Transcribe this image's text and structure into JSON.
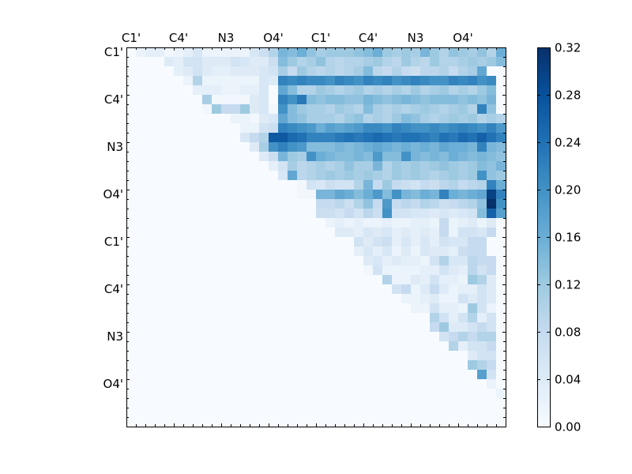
{
  "chart_data": {
    "type": "heatmap",
    "title": "",
    "xlabel": "",
    "ylabel": "",
    "n": 40,
    "x_tick_labels": [
      "C1'",
      "C4'",
      "N3",
      "O4'",
      "C1'",
      "C4'",
      "N3",
      "O4'"
    ],
    "y_tick_labels": [
      "C1'",
      "C4'",
      "N3",
      "O4'",
      "C1'",
      "C4'",
      "N3",
      "O4'"
    ],
    "label_positions": [
      0,
      5,
      10,
      15,
      20,
      25,
      30,
      35
    ],
    "colormap": "Blues",
    "vmin": 0.0,
    "vmax": 0.32,
    "colorbar_ticks": [
      "0.00",
      "0.04",
      "0.08",
      "0.12",
      "0.16",
      "0.20",
      "0.24",
      "0.28",
      "0.32"
    ],
    "colors": {
      "low": "#f7fbff",
      "high": "#08306b"
    },
    "rows": [
      {
        "row": 0,
        "start": 1,
        "values": [
          0.02,
          0.03,
          0.03,
          0.01,
          0.02,
          0.03,
          0.05,
          0.02,
          0.02,
          0.02,
          0.02,
          0.02,
          0.05,
          0.07,
          0.1,
          0.15,
          0.14,
          0.16,
          0.13,
          0.11,
          0.12,
          0.12,
          0.12,
          0.13,
          0.14,
          0.16,
          0.12,
          0.11,
          0.12,
          0.11,
          0.15,
          0.12,
          0.1,
          0.13,
          0.12,
          0.11,
          0.13,
          0.1,
          0.16
        ]
      },
      {
        "row": 1,
        "start": 4,
        "values": [
          0.04,
          0.03,
          0.06,
          0.06,
          0.04,
          0.04,
          0.04,
          0.06,
          0.05,
          0.04,
          0.04,
          0.07,
          0.14,
          0.12,
          0.1,
          0.11,
          0.13,
          0.1,
          0.09,
          0.1,
          0.1,
          0.11,
          0.12,
          0.1,
          0.09,
          0.12,
          0.1,
          0.09,
          0.12,
          0.1,
          0.1,
          0.11,
          0.12,
          0.11,
          0.12,
          0.14
        ]
      },
      {
        "row": 2,
        "start": 5,
        "values": [
          0.03,
          0.04,
          0.06,
          0.04,
          0.03,
          0.03,
          0.04,
          0.04,
          0.04,
          0.05,
          0.06,
          0.11,
          0.08,
          0.12,
          0.1,
          0.09,
          0.1,
          0.09,
          0.1,
          0.11,
          0.14,
          0.09,
          0.08,
          0.1,
          0.08,
          0.07,
          0.09,
          0.09,
          0.1,
          0.08,
          0.1,
          0.11,
          0.17
        ]
      },
      {
        "row": 3,
        "start": 6,
        "values": [
          0.02,
          0.1,
          0.02,
          0.02,
          0.02,
          0.02,
          0.02,
          0.02,
          0.05,
          0.04,
          0.22,
          0.21,
          0.22,
          0.21,
          0.21,
          0.2,
          0.22,
          0.21,
          0.2,
          0.22,
          0.21,
          0.22,
          0.2,
          0.21,
          0.22,
          0.21,
          0.2,
          0.2,
          0.22,
          0.21,
          0.22,
          0.2,
          0.21
        ]
      },
      {
        "row": 4,
        "start": 7,
        "values": [
          0.03,
          0.03,
          0.03,
          0.02,
          0.02,
          0.03,
          0.03,
          0.05,
          0.0,
          0.17,
          0.14,
          0.1,
          0.1,
          0.12,
          0.11,
          0.1,
          0.11,
          0.12,
          0.1,
          0.11,
          0.1,
          0.11,
          0.1,
          0.12,
          0.1,
          0.11,
          0.12,
          0.1,
          0.11,
          0.1,
          0.12,
          0.14
        ]
      },
      {
        "row": 5,
        "start": 8,
        "values": [
          0.11,
          0.01,
          0.01,
          0.01,
          0.01,
          0.04,
          0.05,
          0.0,
          0.22,
          0.2,
          0.23,
          0.14,
          0.13,
          0.14,
          0.14,
          0.13,
          0.13,
          0.15,
          0.14,
          0.13,
          0.14,
          0.15,
          0.14,
          0.13,
          0.14,
          0.14,
          0.14,
          0.13,
          0.14,
          0.13,
          0.15
        ]
      },
      {
        "row": 6,
        "start": 8,
        "values": [
          0.01,
          0.12,
          0.08,
          0.08,
          0.12,
          0.04,
          0.05,
          0.01,
          0.2,
          0.14,
          0.12,
          0.11,
          0.11,
          0.1,
          0.12,
          0.11,
          0.1,
          0.14,
          0.11,
          0.1,
          0.11,
          0.1,
          0.11,
          0.12,
          0.11,
          0.1,
          0.11,
          0.12,
          0.1,
          0.22,
          0.13
        ]
      },
      {
        "row": 7,
        "start": 11,
        "values": [
          0.02,
          0.02,
          0.01,
          0.04,
          0.05,
          0.17,
          0.14,
          0.13,
          0.11,
          0.11,
          0.11,
          0.1,
          0.12,
          0.13,
          0.1,
          0.11,
          0.1,
          0.12,
          0.14,
          0.13,
          0.11,
          0.1,
          0.11,
          0.12,
          0.11,
          0.12,
          0.1,
          0.11,
          0.1
        ]
      },
      {
        "row": 8,
        "start": 12,
        "values": [
          0.02,
          0.02,
          0.06,
          0.07,
          0.22,
          0.21,
          0.2,
          0.19,
          0.16,
          0.18,
          0.17,
          0.18,
          0.19,
          0.21,
          0.21,
          0.2,
          0.22,
          0.21,
          0.2,
          0.2,
          0.21,
          0.2,
          0.21,
          0.22,
          0.21,
          0.2,
          0.22,
          0.19
        ]
      },
      {
        "row": 9,
        "start": 12,
        "values": [
          0.05,
          0.08,
          0.1,
          0.27,
          0.27,
          0.25,
          0.24,
          0.22,
          0.22,
          0.22,
          0.23,
          0.24,
          0.23,
          0.24,
          0.25,
          0.24,
          0.23,
          0.24,
          0.24,
          0.23,
          0.22,
          0.24,
          0.23,
          0.25,
          0.24,
          0.26,
          0.24,
          0.22
        ]
      },
      {
        "row": 10,
        "start": 13,
        "values": [
          0.04,
          0.11,
          0.2,
          0.22,
          0.2,
          0.19,
          0.14,
          0.14,
          0.14,
          0.15,
          0.14,
          0.15,
          0.16,
          0.17,
          0.16,
          0.15,
          0.16,
          0.15,
          0.16,
          0.15,
          0.17,
          0.16,
          0.16,
          0.15,
          0.22,
          0.15,
          0.14
        ]
      },
      {
        "row": 11,
        "start": 14,
        "values": [
          0.04,
          0.07,
          0.15,
          0.12,
          0.11,
          0.2,
          0.16,
          0.15,
          0.14,
          0.14,
          0.15,
          0.14,
          0.19,
          0.14,
          0.14,
          0.2,
          0.15,
          0.14,
          0.15,
          0.14,
          0.16,
          0.15,
          0.14,
          0.15,
          0.14,
          0.13
        ]
      },
      {
        "row": 12,
        "start": 15,
        "values": [
          0.03,
          0.06,
          0.11,
          0.09,
          0.1,
          0.11,
          0.1,
          0.11,
          0.13,
          0.11,
          0.11,
          0.15,
          0.1,
          0.12,
          0.11,
          0.12,
          0.11,
          0.12,
          0.13,
          0.12,
          0.11,
          0.12,
          0.14,
          0.13,
          0.15
        ]
      },
      {
        "row": 13,
        "start": 16,
        "values": [
          0.05,
          0.17,
          0.09,
          0.1,
          0.11,
          0.12,
          0.11,
          0.12,
          0.11,
          0.12,
          0.11,
          0.1,
          0.12,
          0.11,
          0.12,
          0.11,
          0.1,
          0.11,
          0.12,
          0.11,
          0.12,
          0.2,
          0.13,
          0.12
        ]
      },
      {
        "row": 14,
        "start": 18,
        "values": [
          0.01,
          0.06,
          0.05,
          0.07,
          0.06,
          0.06,
          0.1,
          0.15,
          0.08,
          0.12,
          0.08,
          0.07,
          0.06,
          0.08,
          0.07,
          0.09,
          0.1,
          0.08,
          0.09,
          0.1,
          0.22,
          0.16
        ]
      },
      {
        "row": 15,
        "start": 18,
        "values": [
          0.01,
          0.01,
          0.15,
          0.15,
          0.17,
          0.16,
          0.14,
          0.16,
          0.19,
          0.14,
          0.2,
          0.15,
          0.14,
          0.16,
          0.15,
          0.22,
          0.16,
          0.15,
          0.16,
          0.17,
          0.3,
          0.22
        ]
      },
      {
        "row": 16,
        "start": 20,
        "values": [
          0.08,
          0.08,
          0.09,
          0.07,
          0.1,
          0.13,
          0.08,
          0.19,
          0.08,
          0.09,
          0.08,
          0.1,
          0.09,
          0.07,
          0.08,
          0.09,
          0.1,
          0.13,
          0.32,
          0.2
        ]
      },
      {
        "row": 17,
        "start": 20,
        "values": [
          0.07,
          0.07,
          0.06,
          0.08,
          0.06,
          0.09,
          0.07,
          0.2,
          0.06,
          0.06,
          0.05,
          0.05,
          0.04,
          0.05,
          0.04,
          0.05,
          0.06,
          0.14,
          0.26,
          0.18
        ]
      },
      {
        "row": 18,
        "start": 21,
        "values": [
          0.02,
          0.03,
          0.02,
          0.03,
          0.02,
          0.02,
          0.03,
          0.02,
          0.02,
          0.03,
          0.03,
          0.02,
          0.08,
          0.02,
          0.03,
          0.04,
          0.02,
          0.04
        ]
      },
      {
        "row": 19,
        "start": 22,
        "values": [
          0.04,
          0.04,
          0.03,
          0.05,
          0.04,
          0.05,
          0.03,
          0.04,
          0.03,
          0.04,
          0.03,
          0.08,
          0.02,
          0.06,
          0.06,
          0.05,
          0.08
        ]
      },
      {
        "row": 20,
        "start": 24,
        "values": [
          0.06,
          0.04,
          0.06,
          0.07,
          0.03,
          0.05,
          0.03,
          0.05,
          0.03,
          0.06,
          0.05,
          0.05,
          0.08,
          0.08
        ]
      },
      {
        "row": 21,
        "start": 24,
        "values": [
          0.03,
          0.05,
          0.03,
          0.05,
          0.02,
          0.04,
          0.02,
          0.05,
          0.04,
          0.04,
          0.03,
          0.07,
          0.08,
          0.08
        ]
      },
      {
        "row": 22,
        "start": 25,
        "values": [
          0.04,
          0.05,
          0.03,
          0.04,
          0.03,
          0.03,
          0.02,
          0.06,
          0.1,
          0.05,
          0.05,
          0.09,
          0.08,
          0.08
        ]
      },
      {
        "row": 23,
        "start": 25,
        "values": [
          0.01,
          0.06,
          0.02,
          0.02,
          0.02,
          0.02,
          0.03,
          0.03,
          0.06,
          0.04,
          0.03,
          0.09,
          0.06,
          0.08
        ]
      },
      {
        "row": 24,
        "start": 27,
        "values": [
          0.1,
          0.02,
          0.02,
          0.04,
          0.03,
          0.06,
          0.03,
          0.03,
          0.02,
          0.12,
          0.1,
          0.04
        ]
      },
      {
        "row": 25,
        "start": 28,
        "values": [
          0.06,
          0.08,
          0.02,
          0.04,
          0.08,
          0.04,
          0.02,
          0.03,
          0.03,
          0.06,
          0.04
        ]
      },
      {
        "row": 26,
        "start": 29,
        "values": [
          0.02,
          0.02,
          0.03,
          0.04,
          0.02,
          0.02,
          0.06,
          0.04,
          0.06,
          0.04
        ]
      },
      {
        "row": 27,
        "start": 30,
        "values": [
          0.02,
          0.02,
          0.06,
          0.03,
          0.03,
          0.02,
          0.12,
          0.06,
          0.02
        ]
      },
      {
        "row": 28,
        "start": 32,
        "values": [
          0.1,
          0.06,
          0.03,
          0.06,
          0.1,
          0.03,
          0.06
        ]
      },
      {
        "row": 29,
        "start": 32,
        "values": [
          0.08,
          0.12,
          0.04,
          0.04,
          0.06,
          0.08,
          0.06
        ]
      },
      {
        "row": 30,
        "start": 33,
        "values": [
          0.06,
          0.08,
          0.1,
          0.08,
          0.1,
          0.1
        ]
      },
      {
        "row": 31,
        "start": 34,
        "values": [
          0.1,
          0.03,
          0.06,
          0.06,
          0.08
        ]
      },
      {
        "row": 32,
        "start": 36,
        "values": [
          0.04,
          0.06,
          0.06
        ]
      },
      {
        "row": 33,
        "start": 36,
        "values": [
          0.12,
          0.1,
          0.08
        ]
      },
      {
        "row": 34,
        "start": 37,
        "values": [
          0.18,
          0.06
        ]
      },
      {
        "row": 35,
        "start": 38,
        "values": [
          0.02
        ]
      },
      {
        "row": 36,
        "start": 39,
        "values": [
          0.02
        ]
      }
    ]
  }
}
